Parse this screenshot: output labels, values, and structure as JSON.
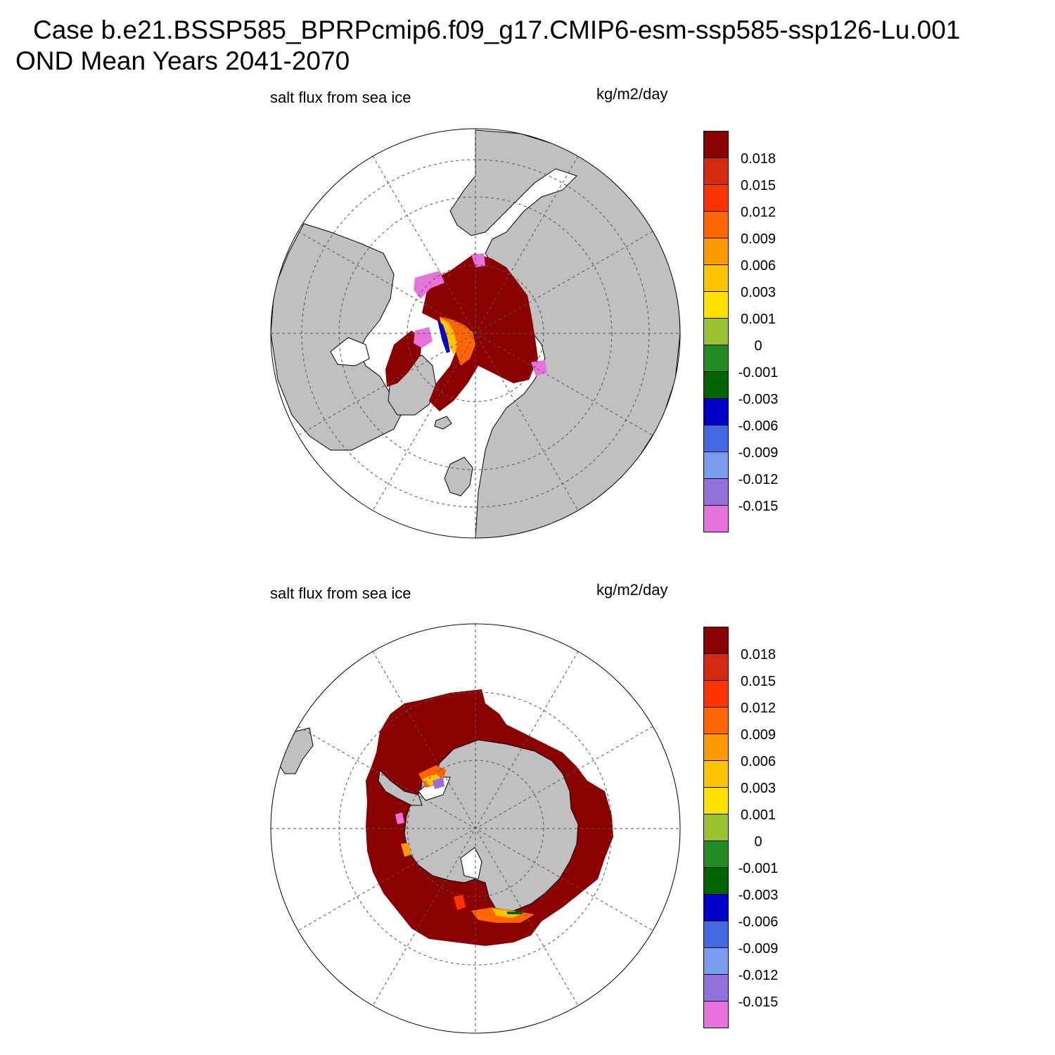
{
  "title": {
    "line1": "Case b.e21.BSSP585_BPRPcmip6.f09_g17.CMIP6-esm-ssp585-ssp126-Lu.001",
    "line2": "OND Mean   Years 2041-2070"
  },
  "panels": [
    {
      "id": "north",
      "variable": "salt flux from sea ice",
      "units": "kg/m2/day"
    },
    {
      "id": "south",
      "variable": "salt flux from sea ice",
      "units": "kg/m2/day"
    }
  ],
  "colorbar": {
    "colors": [
      "#8b0000",
      "#d42a12",
      "#ff3300",
      "#ff6600",
      "#ff9900",
      "#ffc400",
      "#ffe100",
      "#9ac12f",
      "#238b23",
      "#006400",
      "#0000c8",
      "#4169e1",
      "#7b9bf0",
      "#9370db",
      "#e673dc"
    ],
    "labels": [
      "0.018",
      "0.015",
      "0.012",
      "0.009",
      "0.006",
      "0.003",
      "0.001",
      "0",
      "-0.001",
      "-0.003",
      "-0.006",
      "-0.009",
      "-0.012",
      "-0.015"
    ]
  },
  "map_colors": {
    "land": "#c0c0c0",
    "ocean": "#ffffff",
    "ice_flux_high": "#8b0000"
  }
}
